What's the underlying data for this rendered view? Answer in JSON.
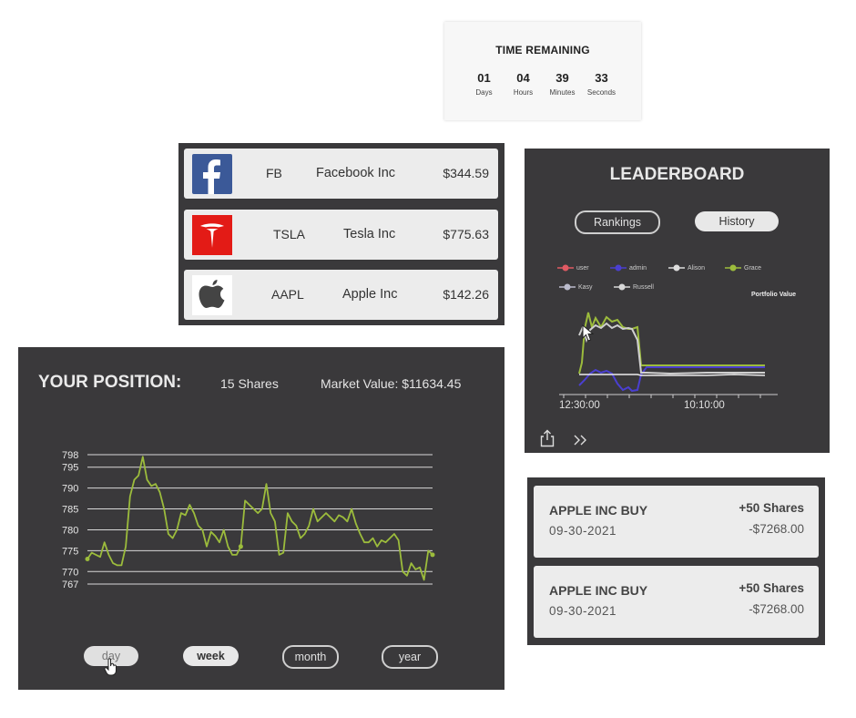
{
  "timer": {
    "title": "TIME REMAINING",
    "units": [
      {
        "value": "01",
        "label": "Days"
      },
      {
        "value": "04",
        "label": "Hours"
      },
      {
        "value": "39",
        "label": "Minutes"
      },
      {
        "value": "33",
        "label": "Seconds"
      }
    ]
  },
  "stocks": [
    {
      "symbol": "FB",
      "name": "Facebook Inc",
      "price": "$344.59",
      "icon": "facebook-icon"
    },
    {
      "symbol": "TSLA",
      "name": "Tesla Inc",
      "price": "$775.63",
      "icon": "tesla-icon"
    },
    {
      "symbol": "AAPL",
      "name": "Apple Inc",
      "price": "$142.26",
      "icon": "apple-icon"
    }
  ],
  "leaderboard": {
    "title": "LEADERBOARD",
    "tabs": [
      {
        "label": "Rankings",
        "active": false
      },
      {
        "label": "History",
        "active": true
      }
    ],
    "chart_note": "Portfolio Value",
    "legend": [
      {
        "name": "user",
        "color": "#e05a63"
      },
      {
        "name": "admin",
        "color": "#4a3fd0"
      },
      {
        "name": "Alison",
        "color": "#dddddd"
      },
      {
        "name": "Grace",
        "color": "#9cbc3c"
      },
      {
        "name": "Kasy",
        "color": "#bbbbcc"
      },
      {
        "name": "Russell",
        "color": "#d8d8d8"
      }
    ],
    "x_ticks": [
      "12:30:00",
      "10:10:00"
    ],
    "share_icon": "share-icon",
    "forward_icon": "double-chevron-right-icon"
  },
  "position": {
    "title": "YOUR POSITION:",
    "shares": "15 Shares",
    "market_value": "Market Value: $11634.45",
    "ranges": [
      {
        "label": "day",
        "active": true
      },
      {
        "label": "week",
        "active": true
      },
      {
        "label": "month",
        "active": false
      },
      {
        "label": "year",
        "active": false
      }
    ]
  },
  "chart_data": {
    "type": "line",
    "title": "",
    "xlabel": "",
    "ylabel": "",
    "yticks": [
      767,
      770,
      775,
      780,
      785,
      790,
      795,
      798
    ],
    "ylim": [
      767,
      798
    ],
    "grid": true,
    "series": [
      {
        "color": "#9cbc3c",
        "values": [
          773,
          774.5,
          774,
          773.5,
          777,
          774,
          772,
          771.5,
          771.5,
          776,
          788,
          792,
          793,
          797.5,
          792,
          790.5,
          791,
          789,
          785,
          779,
          778,
          780,
          784,
          783.5,
          786,
          784,
          781,
          780,
          776,
          779.5,
          778.5,
          777,
          780,
          776,
          774,
          774,
          776,
          787,
          786,
          785,
          784,
          785,
          791,
          784,
          782,
          774,
          774.5,
          784,
          782,
          781,
          778,
          779,
          781,
          785,
          782,
          783,
          784,
          783,
          782,
          783.5,
          783,
          782,
          785,
          781.5,
          779,
          777,
          777,
          778,
          776,
          777.5,
          777,
          778,
          779,
          777.5,
          770,
          769,
          772,
          770.5,
          771,
          768,
          775,
          774
        ]
      }
    ]
  },
  "trades": [
    {
      "title": "APPLE INC BUY",
      "date": "09-30-2021",
      "shares": "+50 Shares",
      "amount": "-$7268.00"
    },
    {
      "title": "APPLE INC BUY",
      "date": "09-30-2021",
      "shares": "+50 Shares",
      "amount": "-$7268.00"
    }
  ]
}
